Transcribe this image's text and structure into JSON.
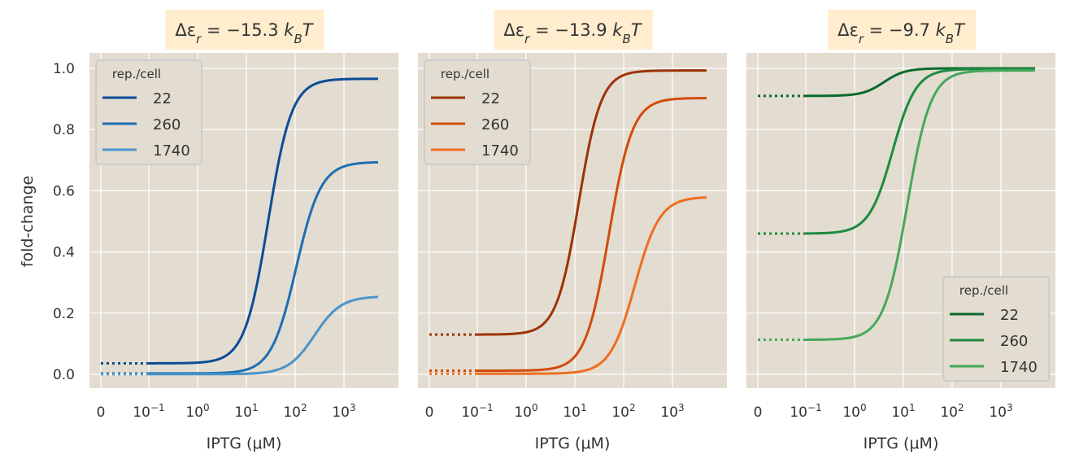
{
  "figure": {
    "ylabel": "fold-change",
    "xlabel": "IPTG (μM)",
    "background_color": "#E3DCD0",
    "title_box_color": "#FFEDCE",
    "grid_color": "#FFFFFF",
    "x_tick_labels": [
      {
        "base": "0",
        "exp": ""
      },
      {
        "base": "10",
        "exp": "−1"
      },
      {
        "base": "10",
        "exp": "0"
      },
      {
        "base": "10",
        "exp": "1"
      },
      {
        "base": "10",
        "exp": "2"
      },
      {
        "base": "10",
        "exp": "3"
      }
    ],
    "y_tick_labels": [
      "0.0",
      "0.2",
      "0.4",
      "0.6",
      "0.8",
      "1.0"
    ]
  },
  "chart_data": [
    {
      "type": "line",
      "title": "Δεr = −15.3 kBT",
      "title_parts": {
        "prefix": "Δε",
        "sub": "r",
        "value": " = −15.3 ",
        "unit": "k",
        "unit_sub": "B",
        "unit_tail": "T"
      },
      "xscale": "log with zero point",
      "xlabel": "IPTG (μM)",
      "ylabel": "fold-change",
      "ylim": [
        -0.03,
        1.03
      ],
      "x_range_uM": [
        0.1,
        5000
      ],
      "legend": {
        "title": "rep./cell",
        "placement": "upper-left"
      },
      "series": [
        {
          "name": "22",
          "color": "#0B4C96",
          "leakiness": 0.036,
          "saturation": 0.966,
          "ec50_uM": 28,
          "hill_n": 1.8
        },
        {
          "name": "260",
          "color": "#1F6EB2",
          "leakiness": 0.003,
          "saturation": 0.694,
          "ec50_uM": 105,
          "hill_n": 1.7
        },
        {
          "name": "1740",
          "color": "#4A94CA",
          "leakiness": 0.0005,
          "saturation": 0.255,
          "ec50_uM": 250,
          "hill_n": 1.6
        }
      ]
    },
    {
      "type": "line",
      "title": "Δεr = −13.9 kBT",
      "title_parts": {
        "prefix": "Δε",
        "sub": "r",
        "value": " = −13.9 ",
        "unit": "k",
        "unit_sub": "B",
        "unit_tail": "T"
      },
      "xscale": "log with zero point",
      "xlabel": "IPTG (μM)",
      "ylim": [
        -0.03,
        1.03
      ],
      "x_range_uM": [
        0.1,
        5000
      ],
      "legend": {
        "title": "rep./cell",
        "placement": "upper-left"
      },
      "series": [
        {
          "name": "22",
          "color": "#9C3306",
          "leakiness": 0.13,
          "saturation": 0.993,
          "ec50_uM": 12,
          "hill_n": 1.9
        },
        {
          "name": "260",
          "color": "#D24B0B",
          "leakiness": 0.012,
          "saturation": 0.903,
          "ec50_uM": 50,
          "hill_n": 1.8
        },
        {
          "name": "1740",
          "color": "#EE6E1E",
          "leakiness": 0.002,
          "saturation": 0.58,
          "ec50_uM": 170,
          "hill_n": 1.7
        }
      ]
    },
    {
      "type": "line",
      "title": "Δεr = −9.7 kBT",
      "title_parts": {
        "prefix": "Δε",
        "sub": "r",
        "value": " = −9.7 ",
        "unit": "k",
        "unit_sub": "B",
        "unit_tail": "T"
      },
      "xscale": "log with zero point",
      "xlabel": "IPTG (μM)",
      "ylim": [
        -0.03,
        1.03
      ],
      "x_range_uM": [
        0.1,
        5000
      ],
      "legend": {
        "title": "rep./cell",
        "placement": "lower-right"
      },
      "series": [
        {
          "name": "22",
          "color": "#0A6A2B",
          "leakiness": 0.91,
          "saturation": 1.0,
          "ec50_uM": 4,
          "hill_n": 2.0
        },
        {
          "name": "260",
          "color": "#1F8A40",
          "leakiness": 0.46,
          "saturation": 0.998,
          "ec50_uM": 6,
          "hill_n": 1.8
        },
        {
          "name": "1740",
          "color": "#45A85C",
          "leakiness": 0.113,
          "saturation": 0.993,
          "ec50_uM": 12,
          "hill_n": 1.8
        }
      ]
    }
  ]
}
